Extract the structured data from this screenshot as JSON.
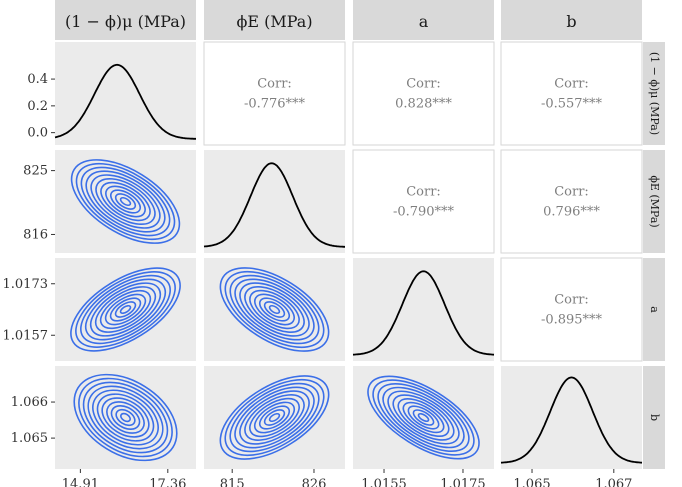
{
  "chart_data": {
    "type": "pairs",
    "variables": [
      "(1 − ϕ)μ (MPa)",
      "ϕE (MPa)",
      "a",
      "b"
    ],
    "row_strip_labels": [
      "(1 − ϕ)μ (MPa)",
      "ϕE (MPa)",
      "a",
      "b"
    ],
    "contour_color": "#3b6fe8",
    "density_color": "#000000",
    "correlations": [
      {
        "row": 0,
        "col": 1,
        "label": "Corr:",
        "value": "-0.776***"
      },
      {
        "row": 0,
        "col": 2,
        "label": "Corr:",
        "value": "0.828***"
      },
      {
        "row": 0,
        "col": 3,
        "label": "Corr:",
        "value": "-0.557***"
      },
      {
        "row": 1,
        "col": 2,
        "label": "Corr:",
        "value": "-0.790***"
      },
      {
        "row": 1,
        "col": 3,
        "label": "Corr:",
        "value": "0.796***"
      },
      {
        "row": 2,
        "col": 3,
        "label": "Corr:",
        "value": "-0.895***"
      }
    ],
    "x_ticks": [
      {
        "col": 0,
        "labels": [
          "14.91",
          "17.36"
        ]
      },
      {
        "col": 1,
        "labels": [
          "815",
          "826"
        ]
      },
      {
        "col": 2,
        "labels": [
          "1.0155",
          "1.0175"
        ]
      },
      {
        "col": 3,
        "labels": [
          "1.065",
          "1.067"
        ]
      }
    ],
    "y_ticks": [
      {
        "row": 0,
        "labels": [
          "0.0",
          "0.2",
          "0.4"
        ]
      },
      {
        "row": 1,
        "labels": [
          "816",
          "825"
        ]
      },
      {
        "row": 2,
        "labels": [
          "1.0157",
          "1.0173"
        ]
      },
      {
        "row": 3,
        "labels": [
          "1.065",
          "1.066"
        ]
      }
    ],
    "density_row0_y": [
      0.0,
      0.2,
      0.4
    ],
    "density_row0_peak": 0.55,
    "densities": [
      {
        "diag": 0,
        "mode": 0.44,
        "spread": 0.16,
        "skew": 0.0
      },
      {
        "diag": 1,
        "mode": 0.48,
        "spread": 0.15,
        "skew": 0.0
      },
      {
        "diag": 2,
        "mode": 0.5,
        "spread": 0.15,
        "skew": 0.0
      },
      {
        "diag": 3,
        "mode": 0.5,
        "spread": 0.15,
        "skew": 0.0
      }
    ],
    "contours": [
      {
        "row": 1,
        "col": 0,
        "corr": -0.776
      },
      {
        "row": 2,
        "col": 0,
        "corr": 0.828
      },
      {
        "row": 2,
        "col": 1,
        "corr": -0.79
      },
      {
        "row": 3,
        "col": 0,
        "corr": -0.557
      },
      {
        "row": 3,
        "col": 1,
        "corr": 0.796
      },
      {
        "row": 3,
        "col": 2,
        "corr": -0.895
      }
    ]
  }
}
